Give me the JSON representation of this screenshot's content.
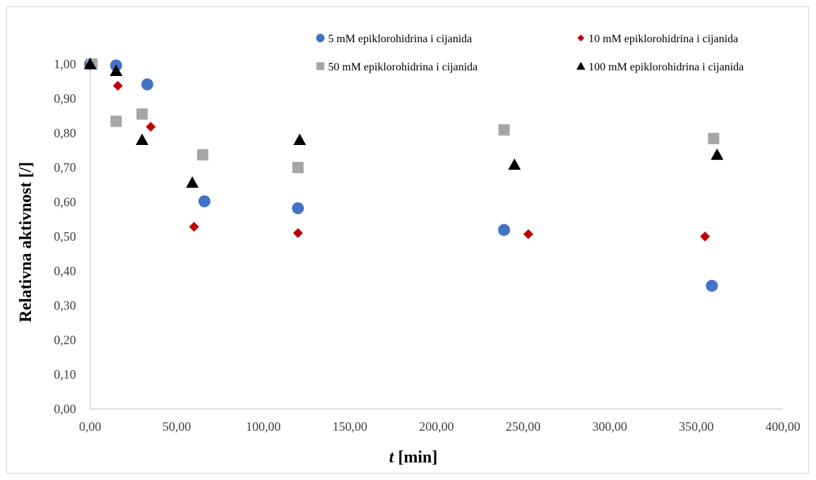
{
  "chart_data": {
    "type": "scatter",
    "xlabel": "[min]",
    "xlabel_var": "t",
    "ylabel": "Relativna aktivnost [/]",
    "xlim": [
      0,
      400
    ],
    "ylim": [
      0,
      1
    ],
    "x_ticks": [
      "0,00",
      "50,00",
      "100,00",
      "150,00",
      "200,00",
      "250,00",
      "300,00",
      "350,00",
      "400,00"
    ],
    "y_ticks": [
      "0,00",
      "0,10",
      "0,20",
      "0,30",
      "0,40",
      "0,50",
      "0,60",
      "0,70",
      "0,80",
      "0,90",
      "1,00"
    ],
    "grid": false,
    "legend_position": "top",
    "series": [
      {
        "name": "5 mM epiklorohidrina i cijanida",
        "marker": "circle",
        "color": "#4472c4",
        "points": [
          [
            0,
            1.0
          ],
          [
            15,
            0.996
          ],
          [
            33,
            0.941
          ],
          [
            66,
            0.602
          ],
          [
            120,
            0.582
          ],
          [
            239,
            0.519
          ],
          [
            359,
            0.357
          ]
        ]
      },
      {
        "name": "10 mM epiklorohidrina i cijanida",
        "marker": "diamond",
        "color": "#c00000",
        "points": [
          [
            0,
            1.0
          ],
          [
            16,
            0.937
          ],
          [
            35,
            0.818
          ],
          [
            60,
            0.528
          ],
          [
            120,
            0.51
          ],
          [
            253,
            0.507
          ],
          [
            355,
            0.5
          ]
        ]
      },
      {
        "name": "50 mM epiklorohidrina i cijanida",
        "marker": "square",
        "color": "#a5a5a5",
        "points": [
          [
            1,
            1.0
          ],
          [
            15,
            0.834
          ],
          [
            30,
            0.855
          ],
          [
            65,
            0.737
          ],
          [
            120,
            0.7
          ],
          [
            239,
            0.809
          ],
          [
            360,
            0.784
          ]
        ]
      },
      {
        "name": "100 mM epiklorohidrina i cijanida",
        "marker": "triangle",
        "color": "#000000",
        "points": [
          [
            0,
            1.0
          ],
          [
            15,
            0.98
          ],
          [
            30,
            0.78
          ],
          [
            59,
            0.656
          ],
          [
            121,
            0.78
          ],
          [
            245,
            0.708
          ],
          [
            362,
            0.737
          ]
        ]
      }
    ]
  }
}
